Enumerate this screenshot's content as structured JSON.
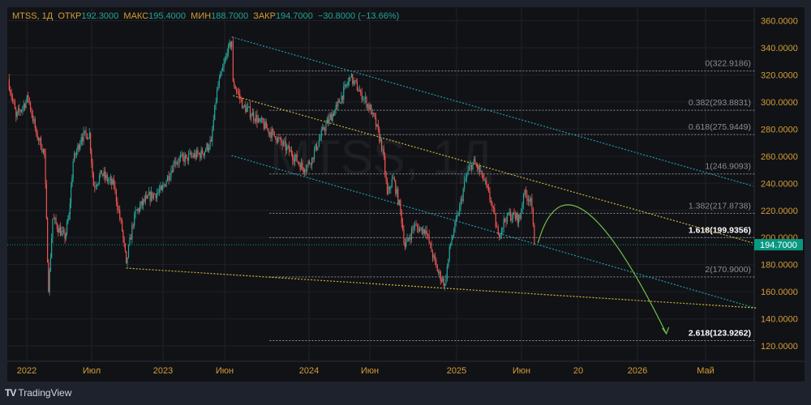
{
  "header": {
    "symbol": "MTSS, 1Д",
    "open_label": "ОТКР",
    "open": "192.3000",
    "high_label": "МАКС",
    "high": "195.4000",
    "low_label": "МИН",
    "low": "188.7000",
    "close_label": "ЗАКР",
    "close": "194.7000",
    "change": "−30.8000 (−13.66%)"
  },
  "watermark": "MTSS, 1Д",
  "brand": "TradingView",
  "colors": {
    "up": "#26a69a",
    "down": "#ef5350",
    "axis_text": "#d39e34",
    "cyan_line": "#1e9bb0",
    "yellow_line": "#c9b83a",
    "arrow": "#6fbf4a",
    "last_price": "#089981"
  },
  "chart_data": {
    "type": "candlestick",
    "title": "MTSS, 1Д",
    "ylim": [
      110,
      365
    ],
    "y_ticks": [
      "360.0000",
      "340.0000",
      "320.0000",
      "300.0000",
      "280.0000",
      "260.0000",
      "240.0000",
      "220.0000",
      "200.0000",
      "180.0000",
      "160.0000",
      "140.0000",
      "120.0000"
    ],
    "y_tick_values": [
      360,
      340,
      320,
      300,
      280,
      260,
      240,
      220,
      200,
      180,
      160,
      140,
      120
    ],
    "x_ticks": [
      {
        "label": "2022",
        "t": 2022.0
      },
      {
        "label": "Июл",
        "t": 2022.5
      },
      {
        "label": "2023",
        "t": 2023.0
      },
      {
        "label": "Июн",
        "t": 2023.42
      },
      {
        "label": "2024",
        "t": 2024.0
      },
      {
        "label": "Июн",
        "t": 2024.42
      },
      {
        "label": "2025",
        "t": 2025.0
      },
      {
        "label": "Июн",
        "t": 2025.42
      },
      {
        "label": "20",
        "t": 2025.72
      },
      {
        "label": "2026",
        "t": 2026.0
      },
      {
        "label": "Май",
        "t": 2026.33
      }
    ],
    "price_path": [
      [
        2021.86,
        317
      ],
      [
        2021.92,
        289
      ],
      [
        2022.01,
        303
      ],
      [
        2022.07,
        277
      ],
      [
        2022.13,
        262
      ],
      [
        2022.16,
        160
      ],
      [
        2022.19,
        214
      ],
      [
        2022.28,
        199
      ],
      [
        2022.31,
        217
      ],
      [
        2022.34,
        256
      ],
      [
        2022.4,
        274
      ],
      [
        2022.46,
        277
      ],
      [
        2022.49,
        238
      ],
      [
        2022.55,
        247
      ],
      [
        2022.64,
        238
      ],
      [
        2022.7,
        205
      ],
      [
        2022.73,
        181
      ],
      [
        2022.79,
        217
      ],
      [
        2022.88,
        229
      ],
      [
        2022.99,
        235
      ],
      [
        2023.08,
        256
      ],
      [
        2023.16,
        259
      ],
      [
        2023.27,
        262
      ],
      [
        2023.33,
        271
      ],
      [
        2023.37,
        309
      ],
      [
        2023.44,
        336
      ],
      [
        2023.47,
        345
      ],
      [
        2023.48,
        315
      ],
      [
        2023.55,
        297
      ],
      [
        2023.66,
        286
      ],
      [
        2023.77,
        274
      ],
      [
        2023.88,
        262
      ],
      [
        2023.97,
        250
      ],
      [
        2024.02,
        259
      ],
      [
        2024.1,
        280
      ],
      [
        2024.19,
        297
      ],
      [
        2024.28,
        318
      ],
      [
        2024.35,
        307
      ],
      [
        2024.43,
        292
      ],
      [
        2024.5,
        265
      ],
      [
        2024.53,
        232
      ],
      [
        2024.57,
        244
      ],
      [
        2024.62,
        220
      ],
      [
        2024.65,
        193
      ],
      [
        2024.71,
        208
      ],
      [
        2024.79,
        205
      ],
      [
        2024.87,
        175
      ],
      [
        2024.92,
        166
      ],
      [
        2024.96,
        196
      ],
      [
        2025.01,
        217
      ],
      [
        2025.05,
        244
      ],
      [
        2025.09,
        256
      ],
      [
        2025.14,
        247
      ],
      [
        2025.19,
        226
      ],
      [
        2025.23,
        202
      ],
      [
        2025.28,
        217
      ],
      [
        2025.35,
        214
      ],
      [
        2025.37,
        232
      ],
      [
        2025.41,
        229
      ],
      [
        2025.43,
        194.7
      ]
    ],
    "last_price": 194.7,
    "last_price_label": "194.7000",
    "trend_lines": [
      {
        "name": "upper-channel-line",
        "color": "cyan",
        "from": [
          2023.47,
          348
        ],
        "to": [
          2026.56,
          238
        ]
      },
      {
        "name": "lower-channel-line",
        "color": "cyan",
        "from": [
          2023.47,
          260.5
        ],
        "to": [
          2026.57,
          148
        ]
      },
      {
        "name": "upper-wedge-line",
        "color": "yellow",
        "from": [
          2023.48,
          304.7
        ],
        "to": [
          2026.56,
          196
        ]
      },
      {
        "name": "lower-wedge-line",
        "color": "yellow",
        "from": [
          2022.73,
          177.4
        ],
        "to": [
          2026.58,
          148
        ]
      }
    ],
    "forecast_arrow": {
      "start": [
        2025.45,
        196
      ],
      "control": [
        2025.62,
        240
      ],
      "end": [
        2026.14,
        129
      ]
    },
    "fibonacci": {
      "start_t": 2023.73,
      "end_t": 2026.57,
      "levels": [
        {
          "label": "0(322.9186)",
          "value": 322.9186,
          "bold": false
        },
        {
          "label": "0.382(293.8831)",
          "value": 293.8831,
          "bold": false
        },
        {
          "label": "0.618(275.9449)",
          "value": 275.9449,
          "bold": false
        },
        {
          "label": "1(246.9093)",
          "value": 246.9093,
          "bold": false
        },
        {
          "label": "1.382(217.8738)",
          "value": 217.8738,
          "bold": false
        },
        {
          "label": "1.618(199.9356)",
          "value": 199.9356,
          "bold": true
        },
        {
          "label": "2(170.9000)",
          "value": 170.9,
          "bold": false
        },
        {
          "label": "2.618(123.9262)",
          "value": 123.9262,
          "bold": true
        }
      ]
    }
  }
}
